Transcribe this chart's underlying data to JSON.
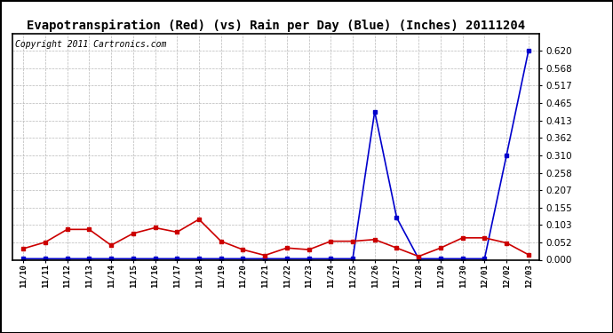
{
  "title": "Evapotranspiration (Red) (vs) Rain per Day (Blue) (Inches) 20111204",
  "copyright": "Copyright 2011 Cartronics.com",
  "labels": [
    "11/10",
    "11/11",
    "11/12",
    "11/13",
    "11/14",
    "11/15",
    "11/16",
    "11/17",
    "11/18",
    "11/19",
    "11/20",
    "11/21",
    "11/22",
    "11/23",
    "11/24",
    "11/25",
    "11/26",
    "11/27",
    "11/28",
    "11/29",
    "11/30",
    "12/01",
    "12/02",
    "12/03"
  ],
  "red_values": [
    0.033,
    0.052,
    0.09,
    0.09,
    0.043,
    0.078,
    0.095,
    0.082,
    0.12,
    0.055,
    0.03,
    0.013,
    0.035,
    0.03,
    0.055,
    0.055,
    0.06,
    0.035,
    0.01,
    0.035,
    0.065,
    0.065,
    0.05,
    0.015
  ],
  "blue_values": [
    0.003,
    0.003,
    0.003,
    0.003,
    0.003,
    0.003,
    0.003,
    0.003,
    0.003,
    0.003,
    0.003,
    0.003,
    0.003,
    0.003,
    0.003,
    0.003,
    0.44,
    0.125,
    0.003,
    0.003,
    0.003,
    0.003,
    0.31,
    0.62
  ],
  "ylim": [
    0.0,
    0.672
  ],
  "yticks": [
    0.0,
    0.052,
    0.103,
    0.155,
    0.207,
    0.258,
    0.31,
    0.362,
    0.413,
    0.465,
    0.517,
    0.568,
    0.62
  ],
  "bg_color": "#ffffff",
  "plot_bg_color": "#ffffff",
  "grid_color": "#b0b0b0",
  "red_color": "#cc0000",
  "blue_color": "#0000cc",
  "title_fontsize": 10,
  "copyright_fontsize": 7
}
